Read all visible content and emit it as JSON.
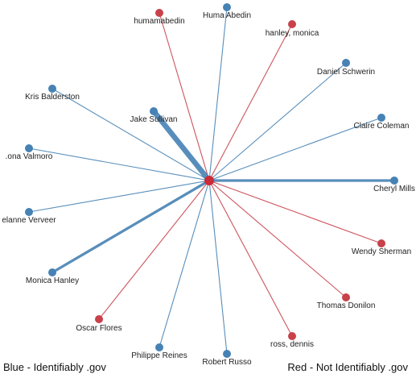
{
  "colors": {
    "blue": "#4682b4",
    "red": "#c8414b",
    "center": "#cc2a36"
  },
  "center_node": {
    "label": "",
    "color": "red"
  },
  "nodes": [
    {
      "id": "humamabedin",
      "label": "humamabedin",
      "color": "red",
      "weight": 1
    },
    {
      "id": "huma-abedin",
      "label": "Huma Abedin",
      "color": "blue",
      "weight": 1
    },
    {
      "id": "hanley-monica",
      "label": "hanley, monica",
      "color": "red",
      "weight": 1
    },
    {
      "id": "daniel-schwerin",
      "label": "Daniel Schwerin",
      "color": "blue",
      "weight": 1
    },
    {
      "id": "claire-coleman",
      "label": "Claire Coleman",
      "color": "blue",
      "weight": 1
    },
    {
      "id": "cheryl-mills",
      "label": "Cheryl Mills",
      "color": "blue",
      "weight": 3
    },
    {
      "id": "wendy-sherman",
      "label": "Wendy Sherman",
      "color": "red",
      "weight": 1
    },
    {
      "id": "thomas-donilon",
      "label": "Thomas Donilon",
      "color": "red",
      "weight": 1
    },
    {
      "id": "ross-dennis",
      "label": "ross, dennis",
      "color": "red",
      "weight": 1
    },
    {
      "id": "robert-russo",
      "label": "Robert Russo",
      "color": "blue",
      "weight": 1
    },
    {
      "id": "philippe-reines",
      "label": "Philippe Reines",
      "color": "blue",
      "weight": 1
    },
    {
      "id": "oscar-flores",
      "label": "Oscar Flores",
      "color": "red",
      "weight": 1
    },
    {
      "id": "monica-hanley",
      "label": "Monica Hanley",
      "color": "blue",
      "weight": 3
    },
    {
      "id": "melanne-verveer",
      "label": "elanne Verveer",
      "color": "blue",
      "weight": 1
    },
    {
      "id": "lona-valmoro",
      "label": ".ona Valmoro",
      "color": "blue",
      "weight": 1
    },
    {
      "id": "kris-balderston",
      "label": "Kris Balderston",
      "color": "blue",
      "weight": 1
    },
    {
      "id": "jake-sullivan",
      "label": "Jake Sullivan",
      "color": "blue",
      "weight": 6
    }
  ],
  "legend": {
    "blue": "Blue - Identifiably .gov",
    "red": "Red - Not Identifiably .gov"
  }
}
